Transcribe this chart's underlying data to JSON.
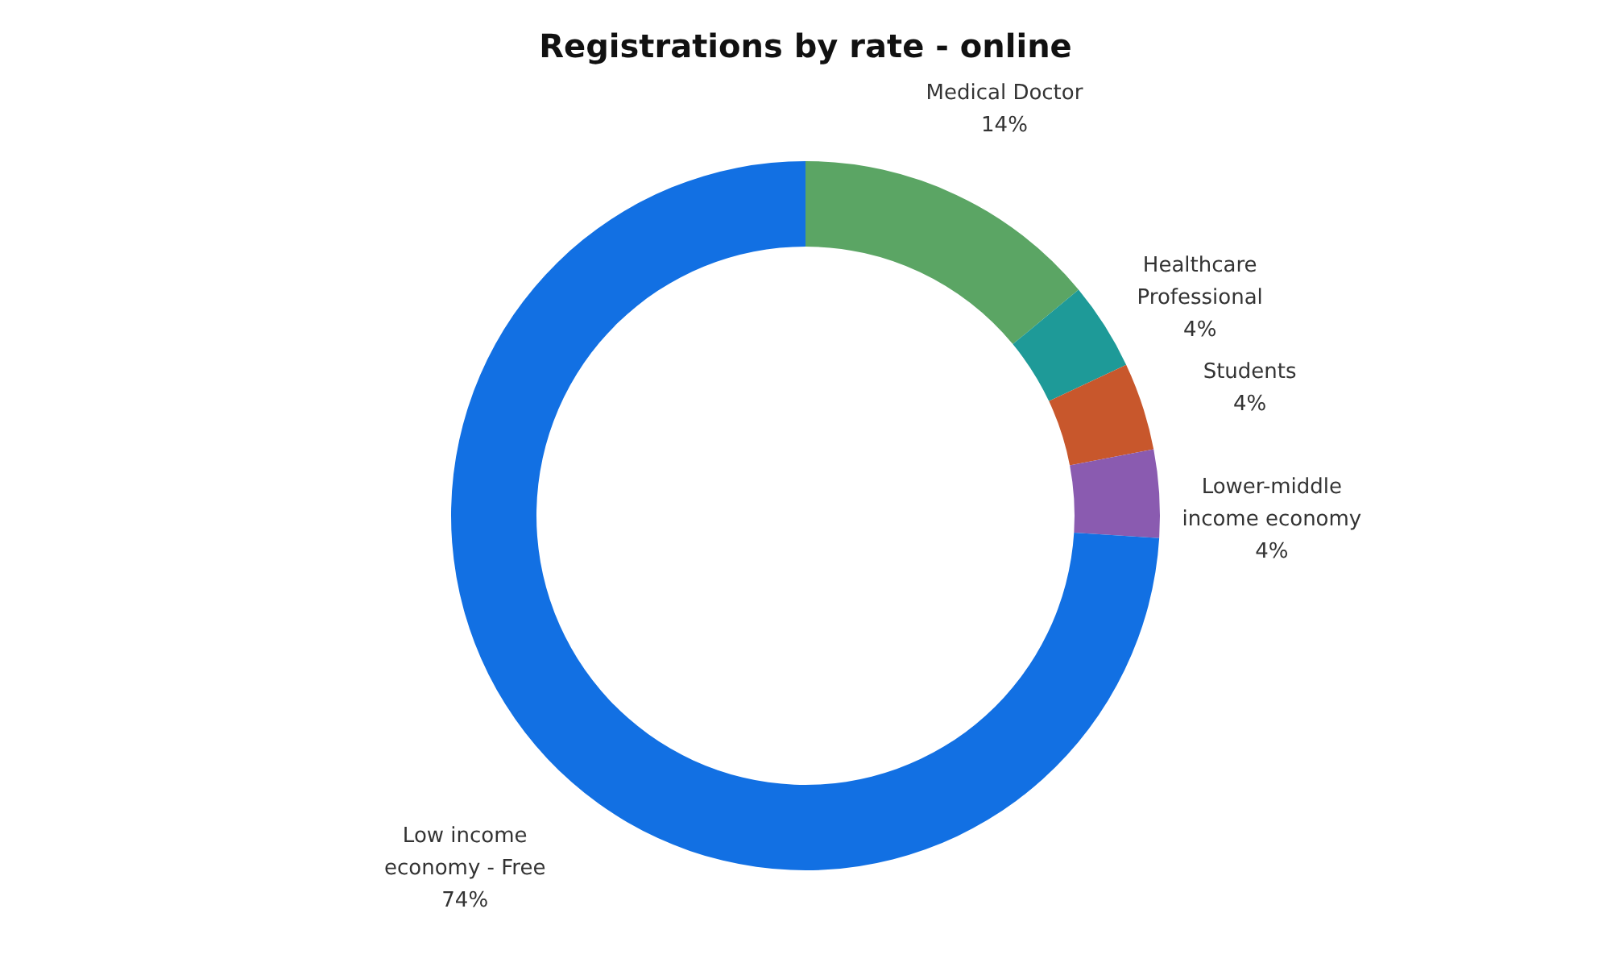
{
  "chart_data": {
    "type": "donut",
    "title": "Registrations by rate - online",
    "categories": [
      "Medical Doctor",
      "Healthcare Professional",
      "Students",
      "Lower-middle income economy",
      "Low income economy - Free"
    ],
    "values": [
      14,
      4,
      4,
      4,
      74
    ],
    "value_labels": [
      "14%",
      "4%",
      "4%",
      "4%",
      "74%"
    ],
    "colors": [
      "#5ba564",
      "#1e9a98",
      "#c8572c",
      "#8a5bb0",
      "#1270e3"
    ],
    "legend": false
  }
}
